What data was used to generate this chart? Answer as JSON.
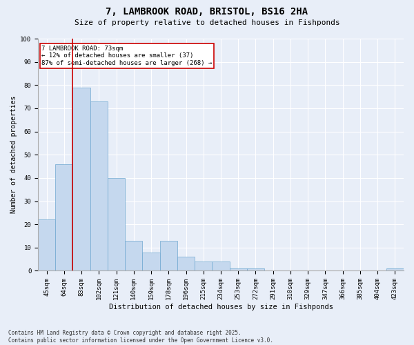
{
  "title1": "7, LAMBROOK ROAD, BRISTOL, BS16 2HA",
  "title2": "Size of property relative to detached houses in Fishponds",
  "xlabel": "Distribution of detached houses by size in Fishponds",
  "ylabel": "Number of detached properties",
  "categories": [
    "45sqm",
    "64sqm",
    "83sqm",
    "102sqm",
    "121sqm",
    "140sqm",
    "159sqm",
    "178sqm",
    "196sqm",
    "215sqm",
    "234sqm",
    "253sqm",
    "272sqm",
    "291sqm",
    "310sqm",
    "329sqm",
    "347sqm",
    "366sqm",
    "385sqm",
    "404sqm",
    "423sqm"
  ],
  "values": [
    22,
    46,
    79,
    73,
    40,
    13,
    8,
    13,
    6,
    4,
    4,
    1,
    1,
    0,
    0,
    0,
    0,
    0,
    0,
    0,
    1
  ],
  "bar_color": "#c5d8ee",
  "bar_edge_color": "#6fa8d0",
  "red_line_x": 1.5,
  "annotation_line1": "7 LAMBROOK ROAD: 73sqm",
  "annotation_line2": "← 12% of detached houses are smaller (37)",
  "annotation_line3": "87% of semi-detached houses are larger (268) →",
  "ylim": [
    0,
    100
  ],
  "yticks": [
    0,
    10,
    20,
    30,
    40,
    50,
    60,
    70,
    80,
    90,
    100
  ],
  "bg_color": "#e8eef8",
  "plot_bg_color": "#e8eef8",
  "footer1": "Contains HM Land Registry data © Crown copyright and database right 2025.",
  "footer2": "Contains public sector information licensed under the Open Government Licence v3.0.",
  "annotation_box_color": "#ffffff",
  "annotation_box_edge": "#cc0000",
  "red_line_color": "#cc0000",
  "title1_fontsize": 10,
  "title2_fontsize": 8,
  "xlabel_fontsize": 7.5,
  "ylabel_fontsize": 7,
  "tick_fontsize": 6.5,
  "annotation_fontsize": 6.5,
  "footer_fontsize": 5.5
}
